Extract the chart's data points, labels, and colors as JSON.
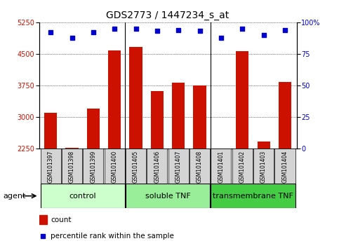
{
  "title": "GDS2773 / 1447234_s_at",
  "samples": [
    "GSM101397",
    "GSM101398",
    "GSM101399",
    "GSM101400",
    "GSM101405",
    "GSM101406",
    "GSM101407",
    "GSM101408",
    "GSM101401",
    "GSM101402",
    "GSM101403",
    "GSM101404"
  ],
  "counts": [
    3100,
    2280,
    3200,
    4580,
    4660,
    3620,
    3820,
    3750,
    2255,
    4570,
    2430,
    3840
  ],
  "percentiles": [
    92,
    88,
    92,
    95,
    95,
    93,
    94,
    93,
    88,
    95,
    90,
    94
  ],
  "ylim_left": [
    2250,
    5250
  ],
  "ylim_right": [
    0,
    100
  ],
  "yticks_left": [
    2250,
    3000,
    3750,
    4500,
    5250
  ],
  "yticks_right": [
    0,
    25,
    50,
    75,
    100
  ],
  "groups": [
    {
      "label": "control",
      "start": 0,
      "end": 4,
      "color": "#ccffcc"
    },
    {
      "label": "soluble TNF",
      "start": 4,
      "end": 8,
      "color": "#99ee99"
    },
    {
      "label": "transmembrane TNF",
      "start": 8,
      "end": 12,
      "color": "#44cc44"
    }
  ],
  "bar_color": "#cc1100",
  "dot_color": "#0000cc",
  "bar_bottom": 2250,
  "agent_label": "agent",
  "legend_count_label": "count",
  "legend_pct_label": "percentile rank within the sample",
  "background_plot": "#ffffff",
  "grid_color": "black",
  "title_fontsize": 10,
  "tick_fontsize": 7,
  "label_fontsize": 5.5,
  "group_fontsize": 8,
  "legend_fontsize": 7.5
}
